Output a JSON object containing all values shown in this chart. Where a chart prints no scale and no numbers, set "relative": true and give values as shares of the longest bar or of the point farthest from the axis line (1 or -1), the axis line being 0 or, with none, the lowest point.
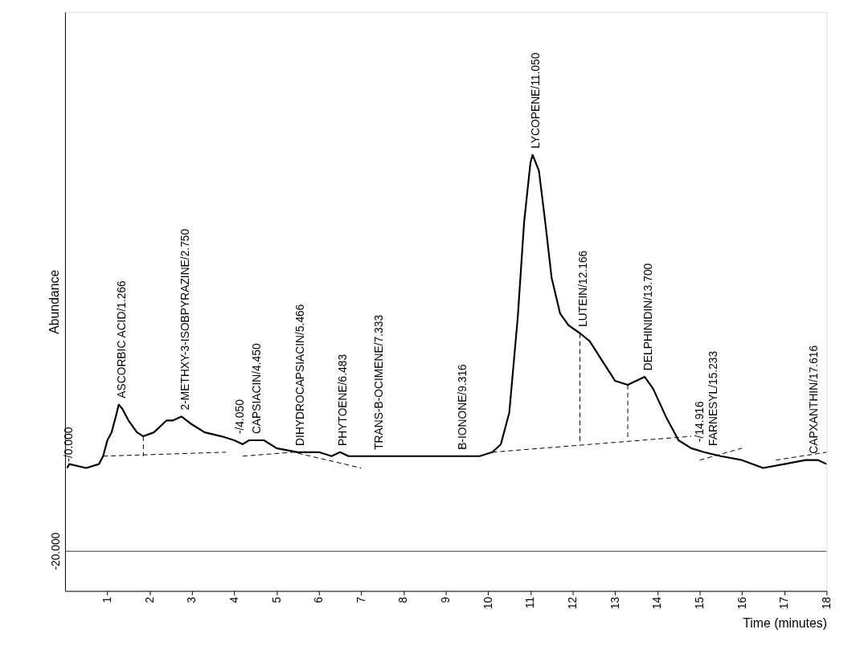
{
  "chart_data": {
    "type": "line",
    "xlabel": "Time (minutes)",
    "ylabel": "Abundance",
    "relative": true,
    "grid": false,
    "xlim": [
      0,
      18
    ],
    "xticks": [
      1,
      2,
      3,
      4,
      5,
      6,
      7,
      8,
      9,
      10,
      11,
      12,
      13,
      14,
      15,
      16,
      17,
      18
    ],
    "series": [
      {
        "color": "#000000",
        "line_style": "solid",
        "x": [
          0.05,
          0.1,
          0.5,
          0.8,
          0.9,
          1.0,
          1.1,
          1.2,
          1.27,
          1.35,
          1.5,
          1.7,
          1.85,
          2.1,
          2.4,
          2.55,
          2.75,
          3.0,
          3.3,
          3.7,
          4.0,
          4.2,
          4.35,
          4.7,
          5.0,
          5.5,
          6.0,
          6.3,
          6.5,
          6.7,
          7.0,
          8.0,
          9.0,
          9.8,
          10.1,
          10.3,
          10.5,
          10.7,
          10.85,
          11.0,
          11.05,
          11.2,
          11.35,
          11.5,
          11.7,
          11.9,
          12.17,
          12.4,
          12.7,
          13.0,
          13.3,
          13.5,
          13.7,
          13.9,
          14.2,
          14.5,
          14.8,
          15.1,
          15.5,
          16.0,
          16.5,
          17.0,
          17.5,
          17.8,
          18.0
        ],
        "values": [
          0.21,
          0.22,
          0.21,
          0.22,
          0.24,
          0.28,
          0.3,
          0.34,
          0.37,
          0.36,
          0.33,
          0.3,
          0.29,
          0.3,
          0.33,
          0.33,
          0.34,
          0.32,
          0.3,
          0.29,
          0.28,
          0.27,
          0.28,
          0.28,
          0.26,
          0.25,
          0.25,
          0.24,
          0.25,
          0.24,
          0.24,
          0.24,
          0.24,
          0.24,
          0.25,
          0.27,
          0.35,
          0.59,
          0.83,
          0.98,
          1.0,
          0.96,
          0.83,
          0.69,
          0.6,
          0.57,
          0.55,
          0.53,
          0.48,
          0.43,
          0.42,
          0.43,
          0.44,
          0.41,
          0.34,
          0.28,
          0.26,
          0.25,
          0.24,
          0.23,
          0.21,
          0.22,
          0.23,
          0.23,
          0.22
        ]
      },
      {
        "color": "#000000",
        "line_style": "dashed",
        "x": [
          0.9,
          3.8,
          null,
          4.2,
          5.4,
          7.0,
          null,
          10.1,
          14.8,
          null,
          15.0,
          16.0,
          null,
          16.8,
          18.0,
          null,
          1.85,
          1.85,
          null,
          12.17,
          12.17,
          null,
          13.3,
          13.3
        ],
        "values": [
          0.24,
          0.25,
          null,
          0.24,
          0.25,
          0.21,
          null,
          0.25,
          0.29,
          null,
          0.23,
          0.26,
          null,
          0.23,
          0.25,
          null,
          0.29,
          0.24,
          null,
          0.55,
          0.27,
          null,
          0.42,
          0.28
        ]
      }
    ],
    "ref_lines": [
      {
        "axis": "y",
        "value": 0,
        "color": "#333333"
      }
    ],
    "annotations": [
      "-20.000",
      {
        "text": "-/0.000",
        "x": 0.0,
        "y": 0.21
      },
      {
        "text": "ASCORBIC ACID/1.266",
        "x": 1.266,
        "y": 0.37
      },
      {
        "text": "2-METHXY-3-ISOBPYRAZINE/2.750",
        "x": 2.75,
        "y": 0.34
      },
      {
        "text": "-/4.050",
        "x": 4.05,
        "y": 0.28
      },
      {
        "text": "CAPSIACIN/4.450",
        "x": 4.45,
        "y": 0.28
      },
      {
        "text": "DIHYDROCAPSIACIN/5.466",
        "x": 5.466,
        "y": 0.25
      },
      {
        "text": "PHYTOENE/6.483",
        "x": 6.483,
        "y": 0.25
      },
      {
        "text": "TRANS-B-OCIMENE/7.333",
        "x": 7.333,
        "y": 0.24
      },
      {
        "text": "B-IONONE/9.316",
        "x": 9.316,
        "y": 0.24
      },
      {
        "text": "LYCOPENE/11.050",
        "x": 11.05,
        "y": 1.0
      },
      {
        "text": "LUTEIN/12.166",
        "x": 12.166,
        "y": 0.55
      },
      {
        "text": "DELPHINIDIN/13.700",
        "x": 13.7,
        "y": 0.44
      },
      {
        "text": "-/14.916",
        "x": 14.916,
        "y": 0.26
      },
      {
        "text": "FARNESYL/15.233",
        "x": 15.233,
        "y": 0.25
      },
      {
        "text": "CAPXANTHIN/17.616",
        "x": 17.616,
        "y": 0.23
      }
    ]
  }
}
